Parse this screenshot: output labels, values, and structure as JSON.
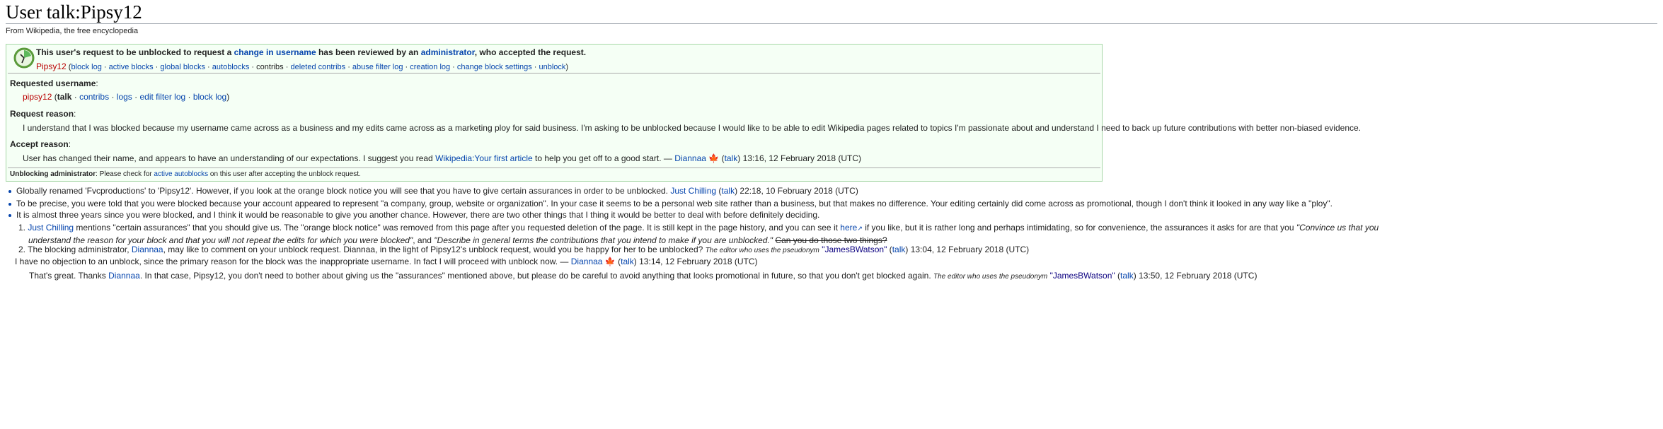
{
  "page": {
    "title": "User talk:Pipsy12",
    "tagline": "From Wikipedia, the free encyclopedia"
  },
  "notice": {
    "icon": "clock-icon",
    "headline": [
      "This user's request to be unblocked to request a ",
      "change in username",
      " has been reviewed by an ",
      "administrator",
      ", who accepted the request."
    ],
    "user": "Pipsy12",
    "user_links": [
      "block log",
      "active blocks",
      "global blocks",
      "autoblocks",
      "contribs",
      "deleted contribs",
      "abuse filter log",
      "creation log",
      "change block settings",
      "unblock"
    ],
    "requested_label": "Requested username",
    "requested_user": "pipsy12",
    "requested_links": [
      "talk",
      "contribs",
      "logs",
      "edit filter log",
      "block log"
    ],
    "reason_label": "Request reason",
    "reason_text": "I understand that I was blocked because my username came across as a business and my edits came across as a marketing ploy for said business. I'm asking to be unblocked because I would like to be able to edit Wikipedia pages related to topics I'm passionate about and understand I need to back up future contributions with better non-biased evidence.",
    "accept_label": "Accept reason",
    "accept_text": "User has changed their name, and appears to have an understanding of our expectations. I suggest you read ",
    "accept_link": "Wikipedia:Your first article",
    "accept_tail": " to help you get off to a good start. — ",
    "accept_sig": "Diannaa",
    "accept_talk": "talk",
    "accept_time": " 13:16, 12 February 2018 (UTC)",
    "footer_label": "Unblocking administrator",
    "footer_text": ": Please check for ",
    "footer_link": "active autoblocks",
    "footer_tail": " on this user after accepting the unblock request."
  },
  "comments": {
    "c1": {
      "text": "Globally renamed 'Fvcproductions' to 'Pipsy12'. However, if you look at the orange block notice you will see that you have to give certain assurances in order to be unblocked. ",
      "sig": "Just Chilling",
      "talk": "talk",
      "time": " 22:18, 10 February 2018 (UTC)"
    },
    "c2": {
      "text": "To be precise, you were told that you were blocked because your account appeared to represent \"a company, group, website or organization\". In your case it seems to be a personal web site rather than a business, but that makes no difference. Your editing certainly did come across as promotional, though I don't think it looked in any way like a \"ploy\"."
    },
    "c3": {
      "text": "It is almost three years since you were blocked, and I think it would be reasonable to give you another chance. However, there are two other things that I thing it would be better to deal with before definitely deciding."
    },
    "n1": {
      "num": "1.",
      "link": "Just Chilling",
      "a": " mentions \"certain assurances\" that you should give us. The \"orange block notice\" was removed from this page after you requested deletion of the page. It is still kept in the page history, and you can see it ",
      "here": "here",
      "b": " if you like, but it is rather long and perhaps intimidating, so for convenience, the assurances it asks for are that you ",
      "q1a": "\"Convince us that you",
      "q1b": "understand the reason for your block and that you will not repeat the edits for which you were blocked\"",
      "c": ", and ",
      "q2": "\"Describe in general terms the contributions that you intend to make if you are unblocked.\"",
      "strike": "Can you do those two things?"
    },
    "n2": {
      "num": "2.",
      "a": "The blocking administrator, ",
      "link": "Diannaa",
      "b": ", may like to comment on your unblock request. Diannaa, in the light of Pipsy12's unblock request, would you be happy for her to be unblocked? ",
      "small": "The editor who uses the pseudonym",
      "sig": "\"JamesBWatson\"",
      "talk": "talk",
      "time": " 13:04, 12 February 2018 (UTC)"
    },
    "r1": {
      "text": "I have no objection to an unblock, since the primary reason for the block was the inappropriate username. In fact I will proceed with unblock now. — ",
      "sig": "Diannaa",
      "talk": "talk",
      "time": " 13:14, 12 February 2018 (UTC)"
    },
    "r2": {
      "a": "That's great. Thanks ",
      "link": "Diannaa",
      "b": ". In that case, Pipsy12, you don't need to bother about giving us the \"assurances\" mentioned above, but please do be careful to avoid anything that looks promotional in future, so that you don't get blocked again. ",
      "small": "The editor who uses the pseudonym",
      "sig": "\"JamesBWatson\"",
      "talk": "talk",
      "time": " 13:50, 12 February 2018 (UTC)"
    }
  },
  "colors": {
    "link": "#0645ad",
    "redlink": "#ba0000",
    "box_bg": "#f5fff5"
  }
}
